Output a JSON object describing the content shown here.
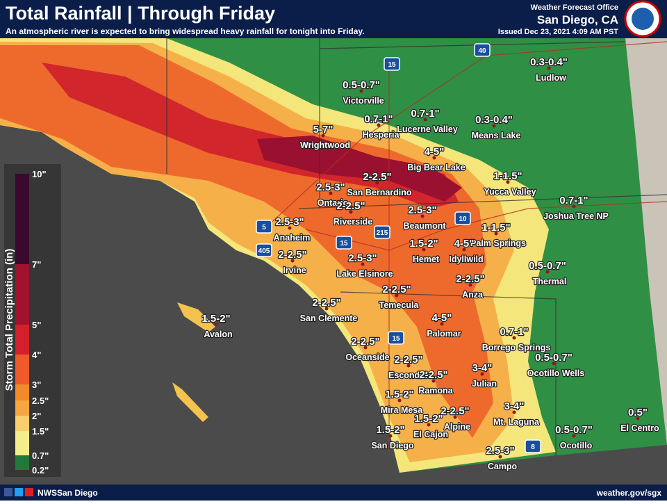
{
  "header": {
    "title": "Total Rainfall | Through Friday",
    "subtitle": "An atmospheric river is expected to bring widespread heavy rainfall for tonight into Friday.",
    "office": "Weather Forecast Office",
    "location": "San Diego, CA",
    "issued": "Issued Dec 23, 2021 4:09 AM PST"
  },
  "legend": {
    "title": "Storm Total Precipitation (in)",
    "labels": [
      "10\"",
      "7\"",
      "5\"",
      "4\"",
      "3\"",
      "2.5\"",
      "2\"",
      "1.5\"",
      "0.7\"",
      "0.2\""
    ]
  },
  "places": [
    {
      "amount": "0.3-0.4\"",
      "name": "Ludlow"
    },
    {
      "amount": "0.5-0.7\"",
      "name": "Victorville"
    },
    {
      "amount": "0.7-1\"",
      "name": "Hesperia"
    },
    {
      "amount": "0.7-1\"",
      "name": "Lucerne Valley"
    },
    {
      "amount": "0.3-0.4\"",
      "name": "Means Lake"
    },
    {
      "amount": "5-7\"",
      "name": "Wrightwood"
    },
    {
      "amount": "4-5\"",
      "name": "Big Bear Lake"
    },
    {
      "amount": "2-2.5\"",
      "name": "San Bernardino"
    },
    {
      "amount": "1-1.5\"",
      "name": "Yucca Valley"
    },
    {
      "amount": "2.5-3\"",
      "name": "Ontario"
    },
    {
      "amount": "2-2.5\"",
      "name": "Riverside"
    },
    {
      "amount": "0.7-1\"",
      "name": "Joshua Tree NP"
    },
    {
      "amount": "2.5-3\"",
      "name": "Anaheim"
    },
    {
      "amount": "2.5-3\"",
      "name": "Beaumont"
    },
    {
      "amount": "1-1.5\"",
      "name": "Palm Springs"
    },
    {
      "amount": "1.5-2\"",
      "name": "Hemet"
    },
    {
      "amount": "4-5\"",
      "name": "Idyllwild"
    },
    {
      "amount": "2-2.5\"",
      "name": "Irvine"
    },
    {
      "amount": "2.5-3\"",
      "name": "Lake Elsinore"
    },
    {
      "amount": "0.5-0.7\"",
      "name": "Thermal"
    },
    {
      "amount": "2-2.5\"",
      "name": "Anza"
    },
    {
      "amount": "2-2.5\"",
      "name": "Temecula"
    },
    {
      "amount": "2-2.5\"",
      "name": "San Clemente"
    },
    {
      "amount": "1.5-2\"",
      "name": "Avalon"
    },
    {
      "amount": "4-5\"",
      "name": "Palomar"
    },
    {
      "amount": "0.7-1\"",
      "name": "Borrego Springs"
    },
    {
      "amount": "2-2.5\"",
      "name": "Oceanside"
    },
    {
      "amount": "0.5-0.7\"",
      "name": "Ocotillo Wells"
    },
    {
      "amount": "2-2.5\"",
      "name": "Escondido"
    },
    {
      "amount": "3-4\"",
      "name": "Julian"
    },
    {
      "amount": "2-2.5\"",
      "name": "Ramona"
    },
    {
      "amount": "1.5-2\"",
      "name": "Mira Mesa"
    },
    {
      "amount": "2-2.5\"",
      "name": "Alpine"
    },
    {
      "amount": "1.5-2\"",
      "name": "El Cajon"
    },
    {
      "amount": "3-4\"",
      "name": "Mt. Laguna"
    },
    {
      "amount": "0.5\"",
      "name": "El Centro"
    },
    {
      "amount": "1.5-2\"",
      "name": "San Diego"
    },
    {
      "amount": "0.5-0.7\"",
      "name": "Ocotillo"
    },
    {
      "amount": "2.5-3\"",
      "name": "Campo"
    }
  ],
  "highways": [
    "40",
    "15",
    "5",
    "10",
    "215",
    "15",
    "405",
    "15",
    "8"
  ],
  "footer": {
    "social": "NWSSan Diego",
    "url": "weather.gov/sgx"
  }
}
